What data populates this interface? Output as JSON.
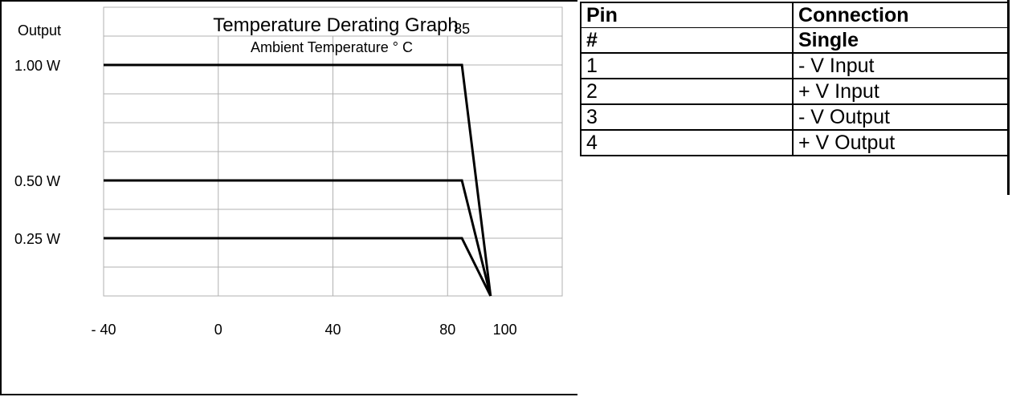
{
  "chart_data": {
    "type": "line",
    "title": "Temperature Derating Graph",
    "subtitle": "Ambient Temperature ° C",
    "ylabel": "Output",
    "x_tick_labels": [
      "- 40",
      "0",
      "40",
      "80",
      "100"
    ],
    "x_ticks": [
      -40,
      0,
      40,
      80,
      100
    ],
    "xlim": [
      -40,
      120
    ],
    "ylim": [
      0,
      1.25
    ],
    "y_tick_labels": [
      "1.00 W",
      "0.50 W",
      "0.25 W"
    ],
    "y_ticks": [
      1.0,
      0.5,
      0.25
    ],
    "annotation": "85",
    "annotation_x": 85,
    "grid": true,
    "series": [
      {
        "x": [
          -40,
          85,
          95
        ],
        "y": [
          1.0,
          1.0,
          0
        ]
      },
      {
        "x": [
          -40,
          85,
          95
        ],
        "y": [
          0.5,
          0.5,
          0
        ]
      },
      {
        "x": [
          -40,
          85,
          95
        ],
        "y": [
          0.25,
          0.25,
          0
        ]
      }
    ]
  },
  "table": {
    "headers": [
      [
        "Pin",
        "Connection"
      ],
      [
        "#",
        "Single"
      ]
    ],
    "rows": [
      [
        "1",
        "- V Input"
      ],
      [
        "2",
        "+ V Input"
      ],
      [
        "3",
        "- V Output"
      ],
      [
        "4",
        "+ V Output"
      ]
    ]
  }
}
